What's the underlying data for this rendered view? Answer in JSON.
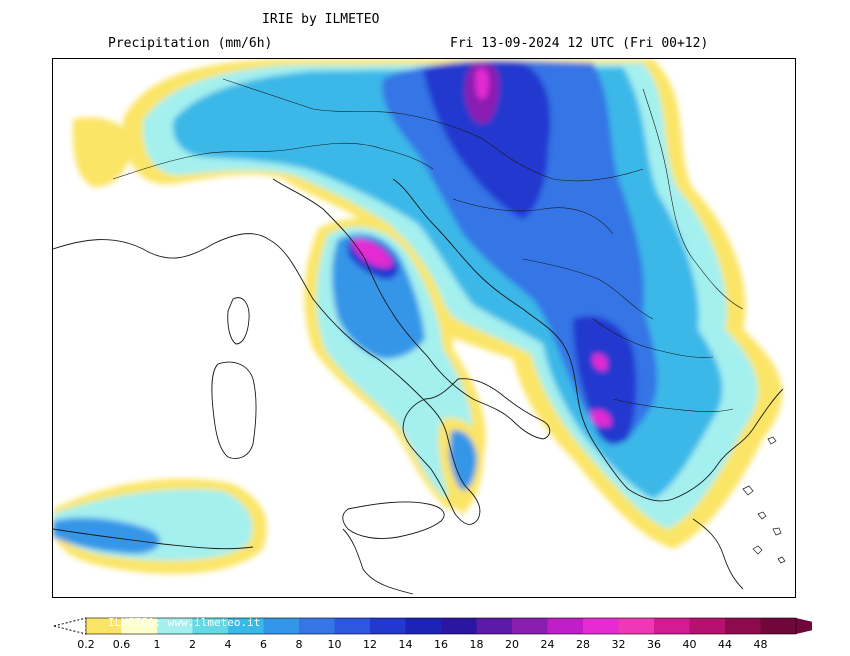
{
  "header": {
    "title": "IRIE by ILMETEO",
    "subtitle": "Precipitation (mm/6h)",
    "timestamp": "Fri 13-09-2024 12 UTC (Fri 00+12)"
  },
  "legend": {
    "watermark": "ILMETEO: www.ilmeteo.it",
    "ticks": [
      "0.2",
      "0.6",
      "1",
      "2",
      "4",
      "6",
      "8",
      "10",
      "12",
      "14",
      "16",
      "18",
      "20",
      "24",
      "28",
      "32",
      "36",
      "40",
      "44",
      "48"
    ],
    "colors": [
      "#fbe566",
      "#ffffcc",
      "#a4f0ef",
      "#63d9e6",
      "#3ab8e8",
      "#3496e8",
      "#3575e6",
      "#2d57de",
      "#2238cf",
      "#1c23b5",
      "#2a16a0",
      "#5b1aa7",
      "#8a1eb1",
      "#c01ec8",
      "#e52cd3",
      "#ee38b6",
      "#d21d90",
      "#b5116e",
      "#8e0a4f",
      "#70063a"
    ]
  },
  "map": {
    "land_color": "#ffffff",
    "outline_color": "#1a1a1a",
    "region": "Italy and the Balkans"
  }
}
